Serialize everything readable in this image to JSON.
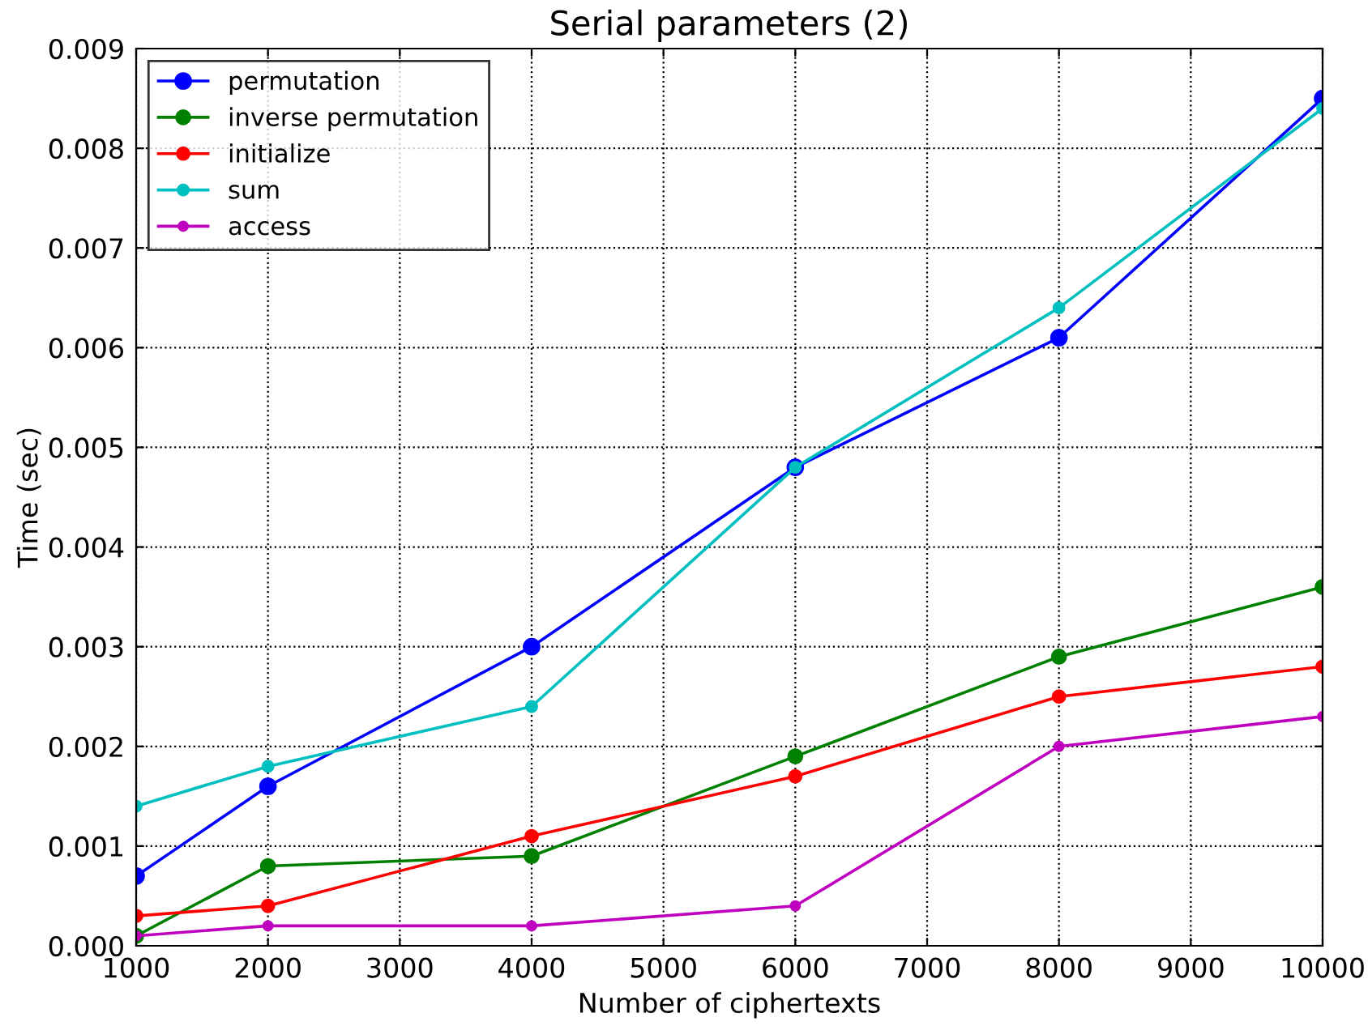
{
  "chart_data": {
    "type": "line",
    "title": "Serial parameters (2)",
    "xlabel": "Number of ciphertexts",
    "ylabel": "Time (sec)",
    "x": [
      1000,
      2000,
      4000,
      6000,
      8000,
      10000
    ],
    "series": [
      {
        "name": "permutation",
        "color": "#0000ff",
        "values": [
          0.0007,
          0.0016,
          0.003,
          0.0048,
          0.0061,
          0.0085
        ]
      },
      {
        "name": "inverse permutation",
        "color": "#008000",
        "values": [
          0.0001,
          0.0008,
          0.0009,
          0.0019,
          0.0029,
          0.0036
        ]
      },
      {
        "name": "initialize",
        "color": "#ff0000",
        "values": [
          0.0003,
          0.0004,
          0.0011,
          0.0017,
          0.0025,
          0.0028
        ]
      },
      {
        "name": "sum",
        "color": "#00bfbf",
        "values": [
          0.0014,
          0.0018,
          0.0024,
          0.0048,
          0.0064,
          0.0084
        ]
      },
      {
        "name": "access",
        "color": "#bf00bf",
        "values": [
          0.0001,
          0.0002,
          0.0002,
          0.0004,
          0.002,
          0.0023
        ]
      }
    ],
    "xlim": [
      1000,
      10000
    ],
    "xticks": [
      1000,
      2000,
      3000,
      4000,
      5000,
      6000,
      7000,
      8000,
      9000,
      10000
    ],
    "ylim": [
      0,
      0.009
    ],
    "yticks": [
      {
        "value": 0,
        "label": "0.000"
      },
      {
        "value": 0.001,
        "label": "0.001"
      },
      {
        "value": 0.002,
        "label": "0.002"
      },
      {
        "value": 0.003,
        "label": "0.003"
      },
      {
        "value": 0.004,
        "label": "0.004"
      },
      {
        "value": 0.005,
        "label": "0.005"
      },
      {
        "value": 0.006,
        "label": "0.006"
      },
      {
        "value": 0.007,
        "label": "0.007"
      },
      {
        "value": 0.008,
        "label": "0.008"
      },
      {
        "value": 0.009,
        "label": "0.009"
      }
    ],
    "grid": true,
    "legend": "top left",
    "marker": "circle",
    "line_style": "solid"
  }
}
